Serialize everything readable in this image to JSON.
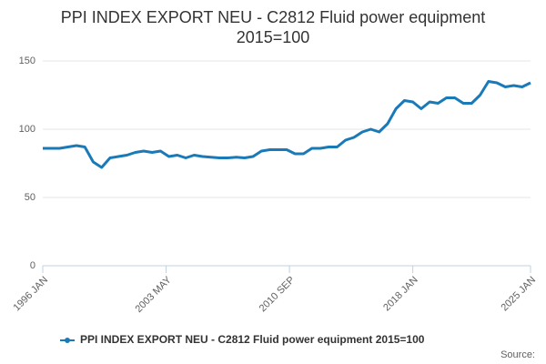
{
  "chart_data": {
    "type": "line",
    "title": "PPI INDEX EXPORT NEU - C2812 Fluid power equipment",
    "subtitle": "2015=100",
    "x": [
      "1996 JAN",
      "1996 JUL",
      "1997 JAN",
      "1997 JUL",
      "1998 JAN",
      "1998 JUL",
      "1999 JAN",
      "1999 JUL",
      "2000 JAN",
      "2000 JUL",
      "2001 JAN",
      "2001 JUL",
      "2002 JAN",
      "2002 JUL",
      "2003 JAN",
      "2003 JUL",
      "2004 JAN",
      "2004 JUL",
      "2005 JAN",
      "2005 JUL",
      "2006 JAN",
      "2006 JUL",
      "2007 JAN",
      "2007 JUL",
      "2008 JAN",
      "2008 JUL",
      "2009 JAN",
      "2009 JUL",
      "2010 JAN",
      "2010 JUL",
      "2011 JAN",
      "2011 JUL",
      "2012 JAN",
      "2012 JUL",
      "2013 JAN",
      "2013 JUL",
      "2014 JAN",
      "2014 JUL",
      "2015 JAN",
      "2015 JUL",
      "2016 JAN",
      "2016 JUL",
      "2017 JAN",
      "2017 JUL",
      "2018 JAN",
      "2018 JUL",
      "2019 JAN",
      "2019 JUL",
      "2020 JAN",
      "2020 JUL",
      "2021 JAN",
      "2021 JUL",
      "2022 JAN",
      "2022 JUL",
      "2023 JAN",
      "2023 JUL",
      "2024 JAN",
      "2024 JUL",
      "2025 JAN"
    ],
    "series": [
      {
        "name": "PPI INDEX EXPORT NEU - C2812 Fluid power equipment 2015=100",
        "color": "#1a7ab8",
        "values": [
          86,
          86,
          86,
          87,
          88,
          87,
          76,
          72,
          79,
          80,
          81,
          83,
          84,
          83,
          84,
          80,
          81,
          79,
          81,
          80,
          79.5,
          79,
          79,
          79.5,
          79,
          80,
          84,
          85,
          85,
          85,
          82,
          82,
          86,
          86,
          87,
          87,
          92,
          94,
          98,
          100,
          98,
          104,
          115,
          121,
          120,
          115,
          120,
          119,
          123,
          123,
          119,
          119,
          125,
          135,
          134,
          131,
          132,
          131,
          134
        ]
      }
    ],
    "xticks": [
      "1996 JAN",
      "2003 MAY",
      "2010 SEP",
      "2018 JAN",
      "2025 JAN"
    ],
    "ylim": [
      0,
      150
    ],
    "yticks": [
      0,
      50,
      100,
      150
    ],
    "grid": true,
    "source": "Source:"
  }
}
